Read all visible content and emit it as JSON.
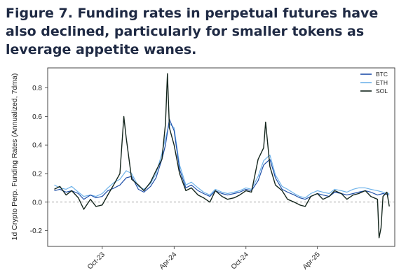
{
  "title": "Figure 7. Funding rates in perpetual futures have also declined, particularly for smaller tokens as leverage appetite wanes.",
  "chart_data": {
    "type": "line",
    "title": "Figure 7. Funding rates in perpetual futures have also declined, particularly for smaller tokens as leverage appetite wanes.",
    "xlabel": "",
    "ylabel": "1d Crypto Perp. Funding Rates (Annualized, 7dma)",
    "xlim": [
      "2023-05-15",
      "2025-10-15"
    ],
    "ylim": [
      -0.31,
      0.94
    ],
    "x_ticks": [
      "Oct-23",
      "Apr-24",
      "Oct-24",
      "Apr-25"
    ],
    "x_tick_dates": [
      "2023-10-01",
      "2024-04-01",
      "2024-10-01",
      "2025-04-01"
    ],
    "y_ticks": [
      -0.2,
      0.0,
      0.2,
      0.4,
      0.6,
      0.8
    ],
    "y_tick_labels": [
      "-0.2",
      "0.0",
      "0.2",
      "0.4",
      "0.6",
      "0.8"
    ],
    "reference_line": 0.0,
    "legend_position": "top-right",
    "colors": {
      "BTC": "#1f4fa8",
      "ETH": "#6fb3ea",
      "SOL": "#14261d"
    },
    "series": [
      {
        "name": "BTC",
        "x": [
          "2023-06-01",
          "2023-06-15",
          "2023-07-01",
          "2023-07-15",
          "2023-08-01",
          "2023-08-15",
          "2023-09-01",
          "2023-09-15",
          "2023-10-01",
          "2023-10-15",
          "2023-11-01",
          "2023-11-15",
          "2023-12-01",
          "2023-12-15",
          "2024-01-01",
          "2024-01-15",
          "2024-02-01",
          "2024-02-15",
          "2024-03-01",
          "2024-03-10",
          "2024-03-20",
          "2024-04-01",
          "2024-04-15",
          "2024-05-01",
          "2024-05-15",
          "2024-06-01",
          "2024-06-15",
          "2024-07-01",
          "2024-07-15",
          "2024-08-01",
          "2024-08-15",
          "2024-09-01",
          "2024-09-15",
          "2024-10-01",
          "2024-10-15",
          "2024-11-01",
          "2024-11-15",
          "2024-12-01",
          "2024-12-15",
          "2025-01-01",
          "2025-01-15",
          "2025-02-01",
          "2025-02-15",
          "2025-03-01",
          "2025-03-15",
          "2025-04-01",
          "2025-04-15",
          "2025-05-01",
          "2025-05-15",
          "2025-06-01",
          "2025-06-15",
          "2025-07-01",
          "2025-07-15",
          "2025-08-01",
          "2025-08-15",
          "2025-09-01",
          "2025-09-15",
          "2025-10-01"
        ],
        "values": [
          0.08,
          0.09,
          0.07,
          0.08,
          0.06,
          0.02,
          0.05,
          0.03,
          0.04,
          0.08,
          0.1,
          0.12,
          0.17,
          0.18,
          0.09,
          0.07,
          0.11,
          0.17,
          0.3,
          0.4,
          0.58,
          0.5,
          0.23,
          0.1,
          0.12,
          0.08,
          0.06,
          0.04,
          0.08,
          0.06,
          0.05,
          0.06,
          0.07,
          0.09,
          0.08,
          0.15,
          0.26,
          0.3,
          0.17,
          0.09,
          0.07,
          0.05,
          0.03,
          0.02,
          0.04,
          0.06,
          0.05,
          0.04,
          0.07,
          0.06,
          0.05,
          0.06,
          0.07,
          0.08,
          0.07,
          0.05,
          0.06,
          0.05
        ]
      },
      {
        "name": "ETH",
        "x": [
          "2023-06-01",
          "2023-06-15",
          "2023-07-01",
          "2023-07-15",
          "2023-08-01",
          "2023-08-15",
          "2023-09-01",
          "2023-09-15",
          "2023-10-01",
          "2023-10-15",
          "2023-11-01",
          "2023-11-15",
          "2023-12-01",
          "2023-12-15",
          "2024-01-01",
          "2024-01-15",
          "2024-02-01",
          "2024-02-15",
          "2024-03-01",
          "2024-03-10",
          "2024-03-20",
          "2024-04-01",
          "2024-04-15",
          "2024-05-01",
          "2024-05-15",
          "2024-06-01",
          "2024-06-15",
          "2024-07-01",
          "2024-07-15",
          "2024-08-01",
          "2024-08-15",
          "2024-09-01",
          "2024-09-15",
          "2024-10-01",
          "2024-10-15",
          "2024-11-01",
          "2024-11-15",
          "2024-12-01",
          "2024-12-15",
          "2025-01-01",
          "2025-01-15",
          "2025-02-01",
          "2025-02-15",
          "2025-03-01",
          "2025-03-15",
          "2025-04-01",
          "2025-04-15",
          "2025-05-01",
          "2025-05-15",
          "2025-06-01",
          "2025-06-15",
          "2025-07-01",
          "2025-07-15",
          "2025-08-01",
          "2025-08-15",
          "2025-09-01",
          "2025-09-15",
          "2025-10-01"
        ],
        "values": [
          0.12,
          0.1,
          0.09,
          0.11,
          0.07,
          0.04,
          0.05,
          0.04,
          0.06,
          0.1,
          0.14,
          0.16,
          0.22,
          0.2,
          0.11,
          0.09,
          0.13,
          0.2,
          0.34,
          0.45,
          0.55,
          0.52,
          0.26,
          0.12,
          0.14,
          0.1,
          0.07,
          0.05,
          0.09,
          0.07,
          0.06,
          0.07,
          0.08,
          0.1,
          0.09,
          0.18,
          0.29,
          0.33,
          0.19,
          0.11,
          0.09,
          0.06,
          0.04,
          0.03,
          0.06,
          0.08,
          0.07,
          0.06,
          0.09,
          0.08,
          0.07,
          0.09,
          0.1,
          0.1,
          0.09,
          0.08,
          0.07,
          0.06
        ]
      },
      {
        "name": "SOL",
        "x": [
          "2023-06-01",
          "2023-06-15",
          "2023-07-01",
          "2023-07-15",
          "2023-08-01",
          "2023-08-15",
          "2023-09-01",
          "2023-09-15",
          "2023-10-01",
          "2023-10-15",
          "2023-11-01",
          "2023-11-15",
          "2023-11-25",
          "2023-12-01",
          "2023-12-15",
          "2024-01-01",
          "2024-01-15",
          "2024-02-01",
          "2024-02-15",
          "2024-03-01",
          "2024-03-10",
          "2024-03-15",
          "2024-03-20",
          "2024-04-01",
          "2024-04-15",
          "2024-05-01",
          "2024-05-15",
          "2024-06-01",
          "2024-06-15",
          "2024-07-01",
          "2024-07-15",
          "2024-08-01",
          "2024-08-15",
          "2024-09-01",
          "2024-09-15",
          "2024-10-01",
          "2024-10-15",
          "2024-11-01",
          "2024-11-15",
          "2024-11-20",
          "2024-12-01",
          "2024-12-15",
          "2025-01-01",
          "2025-01-15",
          "2025-02-01",
          "2025-02-15",
          "2025-03-01",
          "2025-03-15",
          "2025-04-01",
          "2025-04-15",
          "2025-05-01",
          "2025-05-15",
          "2025-06-01",
          "2025-06-15",
          "2025-07-01",
          "2025-07-15",
          "2025-08-01",
          "2025-08-15",
          "2025-09-01",
          "2025-09-05",
          "2025-09-10",
          "2025-09-15",
          "2025-09-25",
          "2025-10-01"
        ],
        "values": [
          0.09,
          0.11,
          0.05,
          0.08,
          0.03,
          -0.05,
          0.02,
          -0.03,
          -0.02,
          0.05,
          0.13,
          0.2,
          0.6,
          0.45,
          0.16,
          0.12,
          0.08,
          0.14,
          0.22,
          0.3,
          0.55,
          0.9,
          0.52,
          0.4,
          0.2,
          0.08,
          0.1,
          0.05,
          0.03,
          0.0,
          0.08,
          0.04,
          0.02,
          0.03,
          0.05,
          0.08,
          0.07,
          0.3,
          0.38,
          0.56,
          0.25,
          0.12,
          0.08,
          0.02,
          0.0,
          -0.02,
          -0.03,
          0.04,
          0.06,
          0.02,
          0.04,
          0.08,
          0.06,
          0.02,
          0.05,
          0.06,
          0.08,
          0.04,
          0.02,
          -0.25,
          -0.18,
          0.04,
          0.07,
          -0.03
        ]
      }
    ]
  }
}
